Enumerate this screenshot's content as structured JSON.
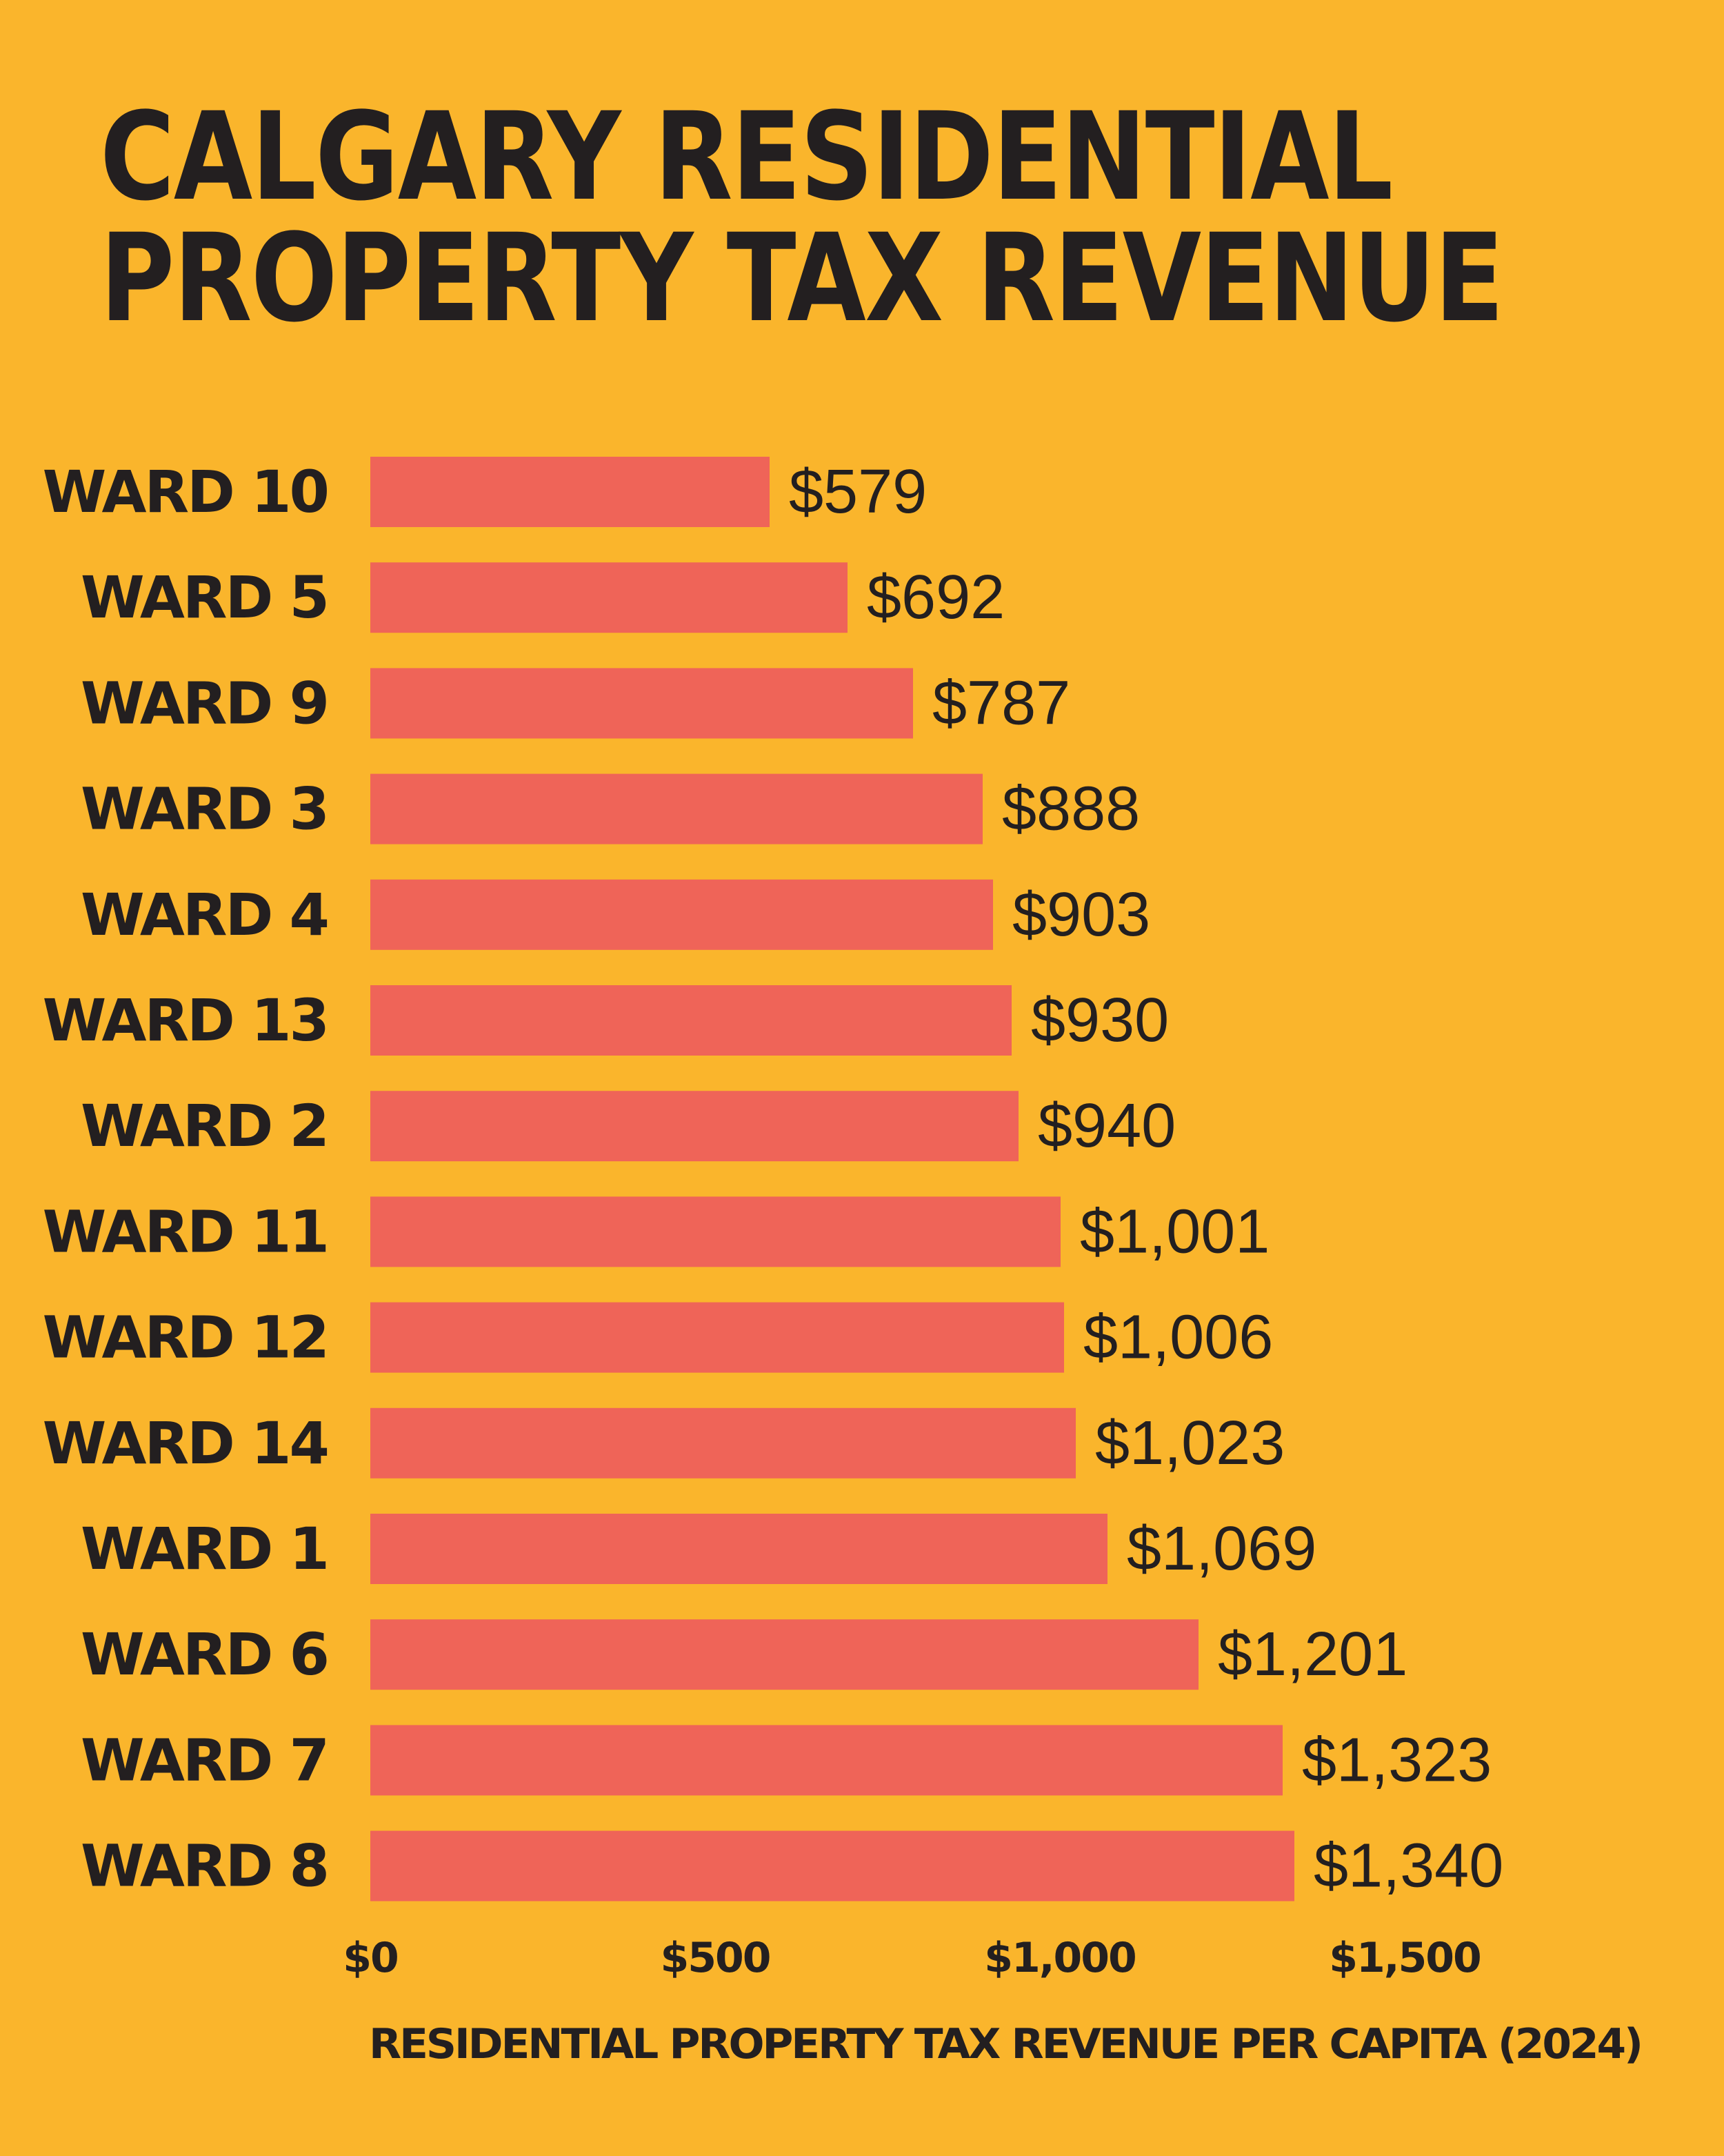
{
  "colors": {
    "background": "#FAB52C",
    "bar": "#EF6458",
    "text": "#231F20"
  },
  "chart_data": {
    "type": "bar",
    "orientation": "horizontal",
    "title": "CALGARY RESIDENTIAL PROPERTY TAX REVENUE",
    "title_lines": [
      "CALGARY RESIDENTIAL",
      "PROPERTY TAX REVENUE"
    ],
    "categories": [
      "WARD 10",
      "WARD 5",
      "WARD 9",
      "WARD 3",
      "WARD 4",
      "WARD 13",
      "WARD 2",
      "WARD 11",
      "WARD 12",
      "WARD 14",
      "WARD 1",
      "WARD 6",
      "WARD 7",
      "WARD 8"
    ],
    "values": [
      579,
      692,
      787,
      888,
      903,
      930,
      940,
      1001,
      1006,
      1023,
      1069,
      1201,
      1323,
      1340
    ],
    "value_labels": [
      "$579",
      "$692",
      "$787",
      "$888",
      "$903",
      "$930",
      "$940",
      "$1,001",
      "$1,006",
      "$1,023",
      "$1,069",
      "$1,201",
      "$1,323",
      "$1,340"
    ],
    "xlabel": "RESIDENTIAL PROPERTY TAX REVENUE PER CAPITA (2024)",
    "ylabel": "",
    "xlim": [
      0,
      1500
    ],
    "x_ticks": [
      0,
      500,
      1000,
      1500
    ],
    "x_tick_labels": [
      "$0",
      "$500",
      "$1,000",
      "$1,500"
    ],
    "grid": false,
    "legend": "none"
  }
}
